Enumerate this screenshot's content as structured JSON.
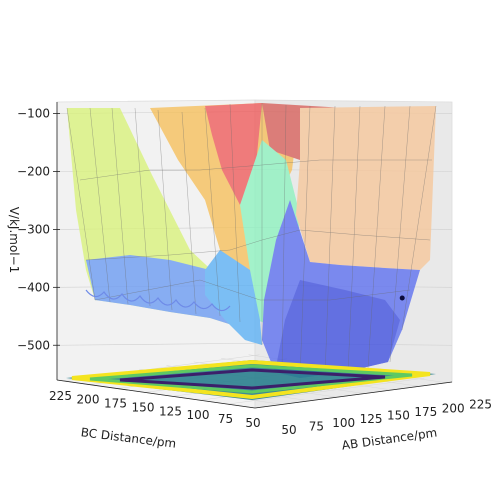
{
  "chart_data": {
    "type": "surface-3d",
    "zlabel": "V/kJ.mol−1",
    "xlabel": "AB Distance/pm",
    "ylabel": "BC Distance/pm",
    "z_ticks": [
      -100,
      -200,
      -300,
      -400,
      -500
    ],
    "z_tick_labels": [
      "−100",
      "−200",
      "−300",
      "−400",
      "−500"
    ],
    "x_ticks": [
      50,
      75,
      100,
      125,
      150,
      175,
      200,
      225
    ],
    "y_ticks": [
      225,
      200,
      175,
      150,
      125,
      100,
      75,
      50
    ],
    "x_range": [
      50,
      230
    ],
    "y_range": [
      50,
      230
    ],
    "z_range": [
      -560,
      -80
    ],
    "grid": true,
    "marker": {
      "x": 228,
      "y": 66,
      "z": -408,
      "color": "#0b0b3a"
    },
    "colormap_surface": "jet",
    "colormap_contour": "viridis"
  }
}
